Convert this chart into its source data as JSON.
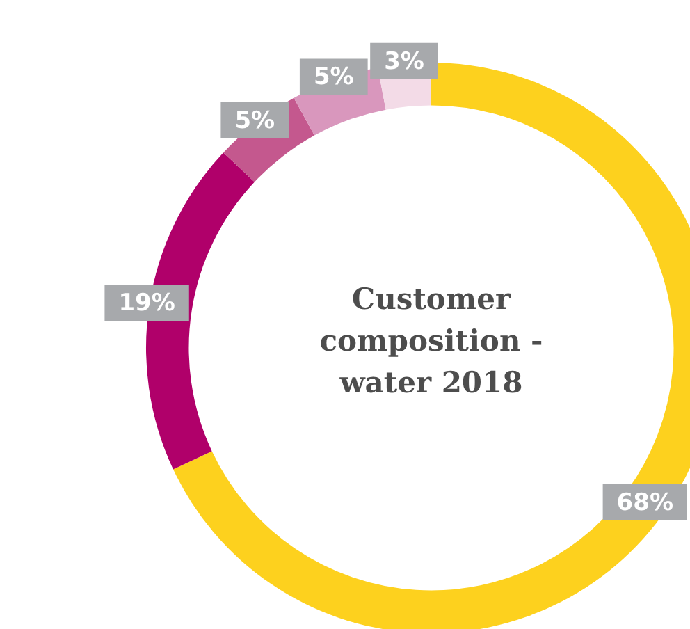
{
  "chart_data": {
    "type": "donut",
    "title": "Customer composition - water 2018",
    "categories": [
      null,
      null,
      null,
      null,
      null
    ],
    "values": [
      68,
      19,
      5,
      5,
      3
    ],
    "colors": [
      "#fdd11e",
      "#b0006a",
      "#c4588e",
      "#d997bd",
      "#f3dbe7"
    ],
    "value_labels": [
      "68%",
      "19%",
      "5%",
      "5%",
      "3%"
    ],
    "legend": false
  }
}
